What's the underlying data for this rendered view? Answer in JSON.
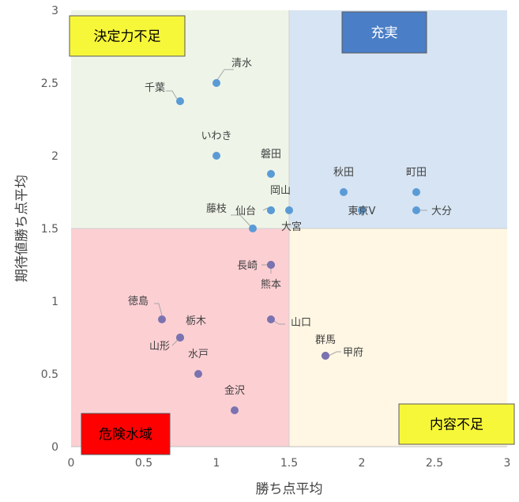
{
  "chart_data": {
    "type": "scatter",
    "title": "",
    "xlabel": "勝ち点平均",
    "ylabel": "期待値勝ち点平均",
    "xlim": [
      0,
      3
    ],
    "ylim": [
      0,
      3
    ],
    "xticks": [
      "0",
      "0.5",
      "1",
      "1.5",
      "2",
      "2.5",
      "3"
    ],
    "yticks": [
      "0",
      "0.5",
      "1",
      "1.5",
      "2",
      "2.5",
      "3"
    ],
    "grid": false,
    "quadrant_split": {
      "x": 1.5,
      "y": 1.5
    },
    "quadrants": [
      {
        "label": "決定力不足",
        "position": "top-left",
        "area_color": "#eef5e8",
        "box_color": "#f7f73a",
        "text_color": "#000000"
      },
      {
        "label": "充実",
        "position": "top-right",
        "area_color": "#d6e4f3",
        "box_color": "#4a7ec6",
        "text_color": "#ffffff"
      },
      {
        "label": "危険水域",
        "position": "bottom-left",
        "area_color": "#fccfd3",
        "box_color": "#ff0000",
        "text_color": "#000000"
      },
      {
        "label": "内容不足",
        "position": "bottom-right",
        "area_color": "#fff7e3",
        "box_color": "#f7f73a",
        "text_color": "#000000"
      }
    ],
    "points": [
      {
        "name": "清水",
        "x": 1.0,
        "y": 2.5
      },
      {
        "name": "千葉",
        "x": 0.75,
        "y": 2.375
      },
      {
        "name": "いわき",
        "x": 1.0,
        "y": 2.0
      },
      {
        "name": "磐田",
        "x": 1.375,
        "y": 1.875
      },
      {
        "name": "仙台",
        "x": 1.375,
        "y": 1.625
      },
      {
        "name": "岡山",
        "x": 1.375,
        "y": 1.625
      },
      {
        "name": "大宮",
        "x": 1.5,
        "y": 1.625
      },
      {
        "name": "藤枝",
        "x": 1.25,
        "y": 1.5
      },
      {
        "name": "秋田",
        "x": 1.875,
        "y": 1.75
      },
      {
        "name": "東京V",
        "x": 2.0,
        "y": 1.625
      },
      {
        "name": "町田",
        "x": 2.375,
        "y": 1.75
      },
      {
        "name": "大分",
        "x": 2.375,
        "y": 1.625
      },
      {
        "name": "長崎",
        "x": 1.375,
        "y": 1.25
      },
      {
        "name": "熊本",
        "x": 1.375,
        "y": 1.25
      },
      {
        "name": "徳島",
        "x": 0.625,
        "y": 0.875
      },
      {
        "name": "栃木",
        "x": 0.75,
        "y": 0.75
      },
      {
        "name": "山形",
        "x": 0.75,
        "y": 0.75
      },
      {
        "name": "山口",
        "x": 1.375,
        "y": 0.875
      },
      {
        "name": "水戸",
        "x": 0.875,
        "y": 0.5
      },
      {
        "name": "群馬",
        "x": 1.75,
        "y": 0.625
      },
      {
        "name": "甲府",
        "x": 1.75,
        "y": 0.625
      },
      {
        "name": "金沢",
        "x": 1.125,
        "y": 0.25
      }
    ],
    "point_colors": {
      "upper": "#5b9bd5",
      "lower": "#7a73b0"
    }
  }
}
